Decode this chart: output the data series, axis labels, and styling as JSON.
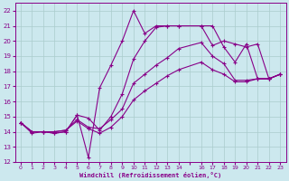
{
  "xlabel": "Windchill (Refroidissement éolien,°C)",
  "bg_color": "#cce8ee",
  "line_color": "#880088",
  "grid_color": "#aacccc",
  "xlim": [
    -0.5,
    23.5
  ],
  "ylim": [
    12,
    22.5
  ],
  "xtick_positions": [
    0,
    1,
    2,
    3,
    4,
    5,
    6,
    7,
    8,
    9,
    10,
    11,
    12,
    13,
    14,
    15,
    16,
    17,
    18,
    19,
    20,
    21,
    22,
    23
  ],
  "xtick_labels": [
    "0",
    "1",
    "2",
    "3",
    "4",
    "5",
    "6",
    "7",
    "8",
    "9",
    "10",
    "11",
    "12",
    "13",
    "14",
    " ",
    "16",
    "17",
    "18",
    "19",
    "20",
    "21",
    "22",
    "23"
  ],
  "ytick_positions": [
    12,
    13,
    14,
    15,
    16,
    17,
    18,
    19,
    20,
    21,
    22
  ],
  "ytick_labels": [
    "12",
    "13",
    "14",
    "15",
    "16",
    "17",
    "18",
    "19",
    "20",
    "21",
    "22"
  ],
  "series": [
    {
      "x": [
        0,
        1,
        2,
        3,
        4,
        5,
        6,
        7,
        8,
        9,
        10,
        11,
        12,
        13,
        14,
        16,
        17,
        18,
        19,
        20,
        21,
        22,
        23
      ],
      "y": [
        14.6,
        13.9,
        14.0,
        13.9,
        14.0,
        15.1,
        12.3,
        16.9,
        18.4,
        20.0,
        22.0,
        20.5,
        21.0,
        21.0,
        21.0,
        21.0,
        19.7,
        20.0,
        19.8,
        19.6,
        19.8,
        17.5,
        17.8
      ]
    },
    {
      "x": [
        0,
        1,
        2,
        3,
        4,
        5,
        6,
        7,
        8,
        9,
        10,
        11,
        12,
        13,
        14,
        16,
        17,
        18,
        19,
        20,
        21,
        22,
        23
      ],
      "y": [
        14.6,
        14.0,
        14.0,
        13.9,
        14.0,
        15.1,
        14.9,
        14.1,
        15.0,
        16.5,
        18.8,
        20.0,
        20.9,
        21.0,
        21.0,
        21.0,
        21.0,
        19.6,
        18.6,
        19.8,
        17.5,
        17.5,
        17.8
      ]
    },
    {
      "x": [
        0,
        1,
        2,
        3,
        4,
        5,
        6,
        7,
        8,
        9,
        10,
        11,
        12,
        13,
        14,
        16,
        17,
        18,
        19,
        20,
        21,
        22,
        23
      ],
      "y": [
        14.6,
        14.0,
        14.0,
        14.0,
        14.1,
        14.8,
        14.3,
        14.2,
        14.8,
        15.5,
        17.2,
        17.8,
        18.4,
        18.9,
        19.5,
        19.9,
        19.0,
        18.5,
        17.4,
        17.4,
        17.5,
        17.5,
        17.8
      ]
    },
    {
      "x": [
        0,
        1,
        2,
        3,
        4,
        5,
        6,
        7,
        8,
        9,
        10,
        11,
        12,
        13,
        14,
        16,
        17,
        18,
        19,
        20,
        21,
        22,
        23
      ],
      "y": [
        14.6,
        14.0,
        14.0,
        14.0,
        14.1,
        14.7,
        14.2,
        13.9,
        14.3,
        15.0,
        16.1,
        16.7,
        17.2,
        17.7,
        18.1,
        18.6,
        18.1,
        17.8,
        17.3,
        17.3,
        17.5,
        17.5,
        17.8
      ]
    }
  ]
}
